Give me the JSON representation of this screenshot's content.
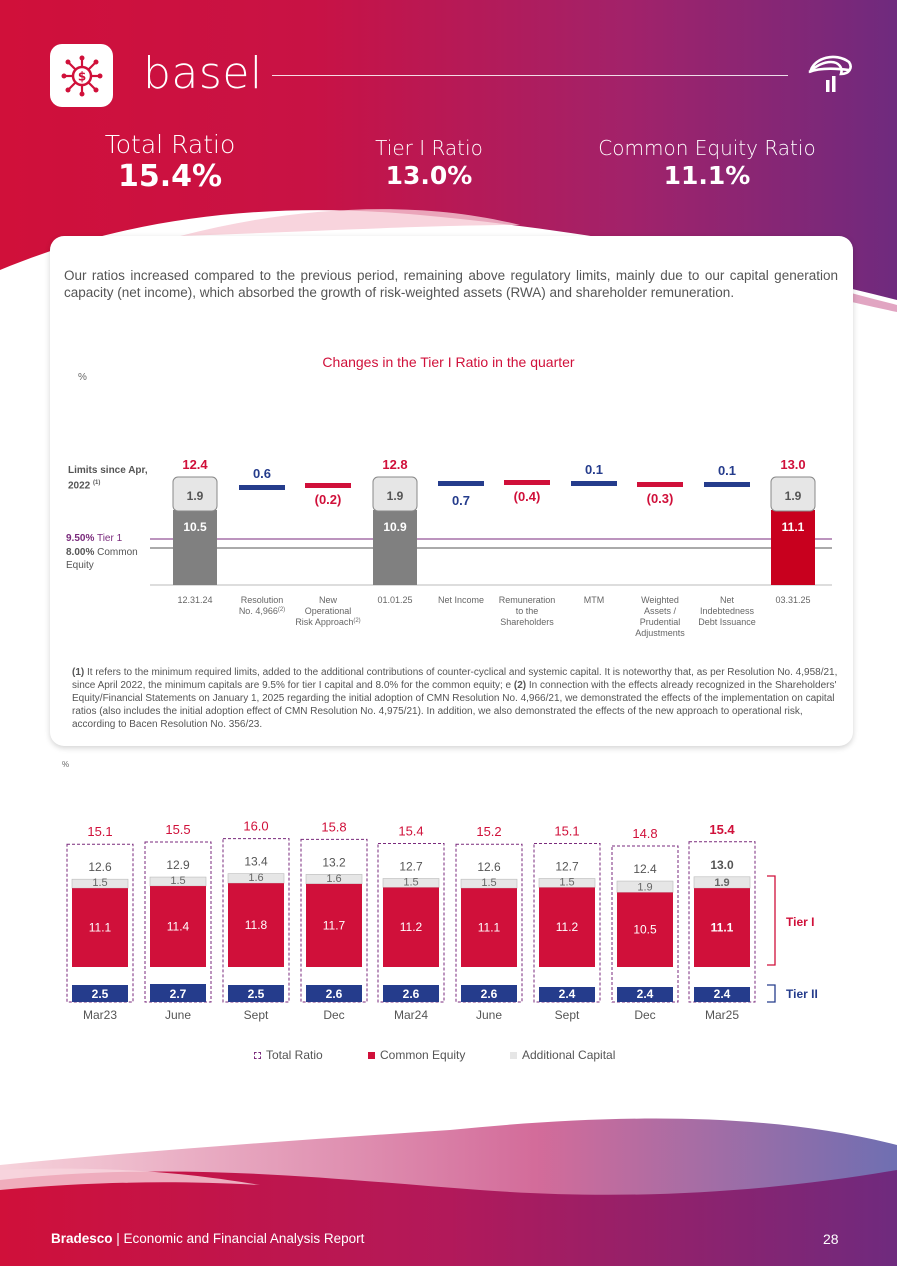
{
  "header": {
    "title": "basel",
    "ratios": [
      {
        "label": "Total Ratio",
        "value": "15.4%"
      },
      {
        "label": "Tier I Ratio",
        "value": "13.0%"
      },
      {
        "label": "Common Equity Ratio",
        "value": "11.1%"
      }
    ]
  },
  "intro_text": "Our ratios increased compared to the previous period, remaining above regulatory limits, mainly due to our capital generation capacity (net income), which absorbed the growth of risk-weighted assets (RWA) and shareholder remuneration.",
  "colors": {
    "red": "#d0103a",
    "navy": "#253c8c",
    "gray": "#808080",
    "light_gray": "#e6e6e6",
    "purple": "#7a2a7c"
  },
  "chart_data": [
    {
      "type": "waterfall",
      "title": "Changes in the Tier I Ratio in the quarter",
      "unit_label": "%",
      "limits_label": "Limits since Apr, 2022",
      "limits_sup": "(1)",
      "limit_tier1": {
        "value": 9.5,
        "pct": "9.50%",
        "text": "Tier 1"
      },
      "limit_ce": {
        "value": 8.0,
        "pct": "8.00%",
        "text": "Common Equity"
      },
      "steps": [
        {
          "category": "12.31.24",
          "kind": "total",
          "total": "12.4",
          "base": 10.5,
          "base_label": "10.5",
          "top": 1.9,
          "top_label": "1.9"
        },
        {
          "category": "Resolution No. 4,966",
          "sup": "(2)",
          "kind": "delta",
          "value": 0.6,
          "label": "0.6"
        },
        {
          "category": "New Operational Risk Approach",
          "sup": "(2)",
          "kind": "delta",
          "value": -0.2,
          "label": "(0.2)"
        },
        {
          "category": "01.01.25",
          "kind": "total",
          "total": "12.8",
          "base": 10.9,
          "base_label": "10.9",
          "top": 1.9,
          "top_label": "1.9"
        },
        {
          "category": "Net Income",
          "kind": "delta",
          "value": 0.7,
          "label": "0.7"
        },
        {
          "category": "Remuneration to the Shareholders",
          "kind": "delta",
          "value": -0.4,
          "label": "(0.4)"
        },
        {
          "category": "MTM",
          "kind": "delta",
          "value": 0.1,
          "label": "0.1"
        },
        {
          "category": "Weighted Assets / Prudential Adjustments",
          "kind": "delta",
          "value": -0.3,
          "label": "(0.3)"
        },
        {
          "category": "Net Indebtedness Debt Issuance",
          "kind": "delta",
          "value": 0.1,
          "label": "0.1"
        },
        {
          "category": "03.31.25",
          "kind": "total",
          "total": "13.0",
          "base": 11.1,
          "base_label": "11.1",
          "top": 1.9,
          "top_label": "1.9"
        }
      ]
    },
    {
      "type": "bar",
      "unit_label": "%",
      "categories": [
        "Mar23",
        "June",
        "Sept",
        "Dec",
        "Mar24",
        "June",
        "Sept",
        "Dec",
        "Mar25"
      ],
      "series": [
        {
          "name": "Total Ratio",
          "values": [
            15.1,
            15.5,
            16.0,
            15.8,
            15.4,
            15.2,
            15.1,
            14.8,
            15.4
          ],
          "labels": [
            "15.1",
            "15.5",
            "16.0",
            "15.8",
            "15.4",
            "15.2",
            "15.1",
            "14.8",
            "15.4"
          ]
        },
        {
          "name": "Tier I",
          "values": [
            12.6,
            12.9,
            13.4,
            13.2,
            12.7,
            12.6,
            12.7,
            12.4,
            13.0
          ],
          "labels": [
            "12.6",
            "12.9",
            "13.4",
            "13.2",
            "12.7",
            "12.6",
            "12.7",
            "12.4",
            "13.0"
          ]
        },
        {
          "name": "Common Equity",
          "values": [
            11.1,
            11.4,
            11.8,
            11.7,
            11.2,
            11.1,
            11.2,
            10.5,
            11.1
          ],
          "labels": [
            "11.1",
            "11.4",
            "11.8",
            "11.7",
            "11.2",
            "11.1",
            "11.2",
            "10.5",
            "11.1"
          ]
        },
        {
          "name": "Additional Capital",
          "values": [
            1.5,
            1.5,
            1.6,
            1.6,
            1.5,
            1.5,
            1.5,
            1.9,
            1.9
          ],
          "labels": [
            "1.5",
            "1.5",
            "1.6",
            "1.6",
            "1.5",
            "1.5",
            "1.5",
            "1.9",
            "1.9"
          ]
        },
        {
          "name": "Tier II",
          "values": [
            2.5,
            2.7,
            2.5,
            2.6,
            2.6,
            2.6,
            2.4,
            2.4,
            2.4
          ],
          "labels": [
            "2.5",
            "2.7",
            "2.5",
            "2.6",
            "2.6",
            "2.6",
            "2.4",
            "2.4",
            "2.4"
          ]
        }
      ],
      "bracket_tier1": "Tier I",
      "bracket_tier2": "Tier II",
      "legend": [
        "Total Ratio",
        "Common Equity",
        "Additional Capital"
      ]
    }
  ],
  "footnote": {
    "mark1": "(1)",
    "text1": " It refers to the minimum required limits, added to the additional contributions of counter-cyclical and systemic capital. It is noteworthy that, as per Resolution No. 4,958/21, since April 2022, the minimum capitals are 9.5% for tier I capital and 8.0% for the common equity; e ",
    "mark2": "(2)",
    "text2": " In connection with the effects already recognized in the Shareholders' Equity/Financial Statements on January 1, 2025 regarding the initial adoption of CMN Resolution No. 4,966/21, we demonstrated the effects of the implementation on capital ratios (also includes the initial adoption effect of CMN Resolution No. 4,975/21). In addition, we also demonstrated the effects of the new approach to operational risk, according to Bacen Resolution No. 356/23."
  },
  "footer": {
    "brand": "Bradesco",
    "separator": " | ",
    "text": "Economic and Financial Analysis Report",
    "page": "28"
  }
}
